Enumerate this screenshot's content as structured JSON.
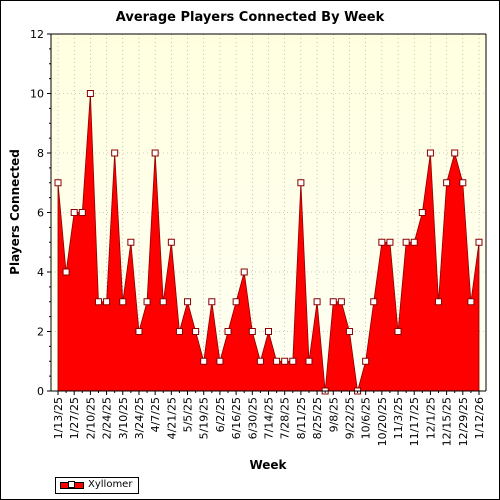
{
  "chart_data": {
    "type": "area",
    "title": "Average Players Connected By Week",
    "xlabel": "Week",
    "ylabel": "Players Connected",
    "ylim": [
      0,
      12
    ],
    "yticks": [
      0,
      2,
      4,
      6,
      8,
      10,
      12
    ],
    "grid": true,
    "legend_position": "bottom-left",
    "x": [
      "1/13/25",
      "1/20/25",
      "1/27/25",
      "2/3/25",
      "2/10/25",
      "2/17/25",
      "2/24/25",
      "3/3/25",
      "3/10/25",
      "3/17/25",
      "3/24/25",
      "3/31/25",
      "4/7/25",
      "4/14/25",
      "4/21/25",
      "4/28/25",
      "5/5/25",
      "5/12/25",
      "5/19/25",
      "5/26/25",
      "6/2/25",
      "6/9/25",
      "6/16/25",
      "6/23/25",
      "6/30/25",
      "7/7/25",
      "7/14/25",
      "7/21/25",
      "7/28/25",
      "8/4/25",
      "8/11/25",
      "8/18/25",
      "8/25/25",
      "9/1/25",
      "9/8/25",
      "9/15/25",
      "9/22/25",
      "9/29/25",
      "10/6/25",
      "10/13/25",
      "10/20/25",
      "10/27/25",
      "11/3/25",
      "11/10/25",
      "11/17/25",
      "11/24/25",
      "12/1/25",
      "12/8/25",
      "12/15/25",
      "12/22/25",
      "12/29/25",
      "1/5/26",
      "1/12/26"
    ],
    "series": [
      {
        "name": "Xyllomer",
        "color": "#ff0000",
        "values": [
          7,
          4,
          6,
          6,
          10,
          3,
          3,
          8,
          3,
          5,
          2,
          3,
          8,
          3,
          5,
          2,
          3,
          2,
          1,
          3,
          1,
          2,
          3,
          4,
          2,
          1,
          2,
          1,
          1,
          1,
          7,
          1,
          3,
          0,
          3,
          3,
          2,
          0,
          1,
          3,
          5,
          5,
          2,
          5,
          5,
          6,
          8,
          3,
          7,
          8,
          7,
          3,
          5
        ]
      }
    ],
    "xtick_labels": [
      "1/13/25",
      "1/27/25",
      "2/10/25",
      "2/24/25",
      "3/10/25",
      "3/24/25",
      "4/7/25",
      "4/21/25",
      "5/5/25",
      "5/19/25",
      "6/2/25",
      "6/16/25",
      "6/30/25",
      "7/14/25",
      "7/28/25",
      "8/11/25",
      "8/25/25",
      "9/8/25",
      "9/22/25",
      "10/6/25",
      "10/20/25",
      "11/3/25",
      "11/17/25",
      "12/1/25",
      "12/15/25",
      "12/29/25",
      "1/12/26"
    ]
  },
  "colors": {
    "plot_background_top": "#ffffe0",
    "plot_background_bottom": "#fffff2",
    "grid": "#999999",
    "area_fill": "#ff0000",
    "marker_fill": "#ffffff"
  }
}
